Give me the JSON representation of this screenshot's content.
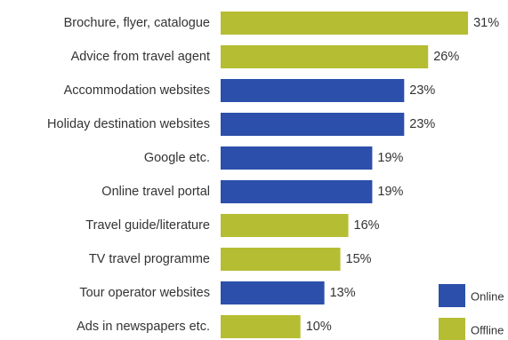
{
  "chart_data": {
    "type": "bar",
    "orientation": "horizontal",
    "unit": "%",
    "categories": [
      "Brochure, flyer, catalogue",
      "Advice from travel agent",
      "Accommodation websites",
      "Holiday destination websites",
      "Google etc.",
      "Online travel portal",
      "Travel guide/literature",
      "TV travel programme",
      "Tour operator websites",
      "Ads in newspapers etc."
    ],
    "values": [
      31,
      26,
      23,
      23,
      19,
      19,
      16,
      15,
      13,
      10
    ],
    "value_labels": [
      "31%",
      "26%",
      "23%",
      "23%",
      "19%",
      "19%",
      "16%",
      "15%",
      "13%",
      "10%"
    ],
    "groups": [
      "Offline",
      "Offline",
      "Online",
      "Online",
      "Online",
      "Online",
      "Offline",
      "Offline",
      "Online",
      "Offline"
    ],
    "legend": [
      {
        "name": "Online",
        "color": "#2b4faa"
      },
      {
        "name": "Offline",
        "color": "#b5bd32"
      }
    ],
    "legend_position": "bottom-right",
    "colors": {
      "Online": "#2b4faa",
      "Offline": "#b5bd32"
    },
    "xlim": [
      0,
      31
    ],
    "grid": false
  }
}
